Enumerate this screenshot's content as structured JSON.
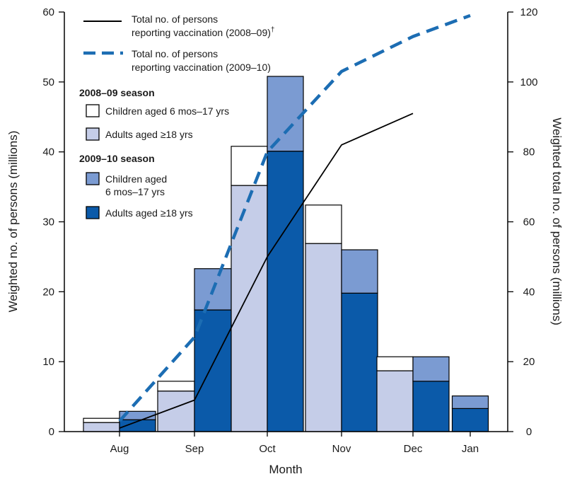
{
  "chart_data": {
    "type": "bar",
    "categories": [
      "Aug",
      "Sep",
      "Oct",
      "Nov",
      "Dec",
      "Jan"
    ],
    "xlabel": "Month",
    "ylabel": "Weighted no. of persons (millions)",
    "ylabel_right": "Weighted total no. of persons (millions)",
    "ylim": [
      0,
      60
    ],
    "ylim_right": [
      0,
      120
    ],
    "yticks": [
      0,
      10,
      20,
      30,
      40,
      50,
      60
    ],
    "yticks_right": [
      0,
      20,
      40,
      60,
      80,
      100,
      120
    ],
    "legend": {
      "season_2008_09": "2008–09 season",
      "season_2009_10": "2009–10 season",
      "line_2008_09_line1": "Total no. of persons",
      "line_2008_09_line2": "reporting vaccination (2008–09)",
      "line_2008_09_mark": "†",
      "line_2009_10_line1": "Total no. of persons",
      "line_2009_10_line2": "reporting vaccination (2009–10)",
      "children_2008": "Children aged 6 mos–17 yrs",
      "adults_2008": "Adults aged ≥18 yrs",
      "children_2009_line1": "Children aged",
      "children_2009_line2": "6 mos–17 yrs",
      "adults_2009": "Adults aged ≥18 yrs"
    },
    "series": [
      {
        "season": "2008–09",
        "group": "Adults aged ≥18 yrs",
        "values": [
          1.3,
          5.8,
          35.2,
          26.9,
          8.7,
          null
        ],
        "color": "#c5cde8"
      },
      {
        "season": "2008–09",
        "group": "Children aged 6 mos–17 yrs",
        "values": [
          0.6,
          1.4,
          5.6,
          5.5,
          2.0,
          null
        ],
        "color": "#ffffff"
      },
      {
        "season": "2009–10",
        "group": "Adults aged ≥18 yrs",
        "values": [
          1.7,
          17.4,
          40.1,
          19.8,
          7.2,
          3.3
        ],
        "color": "#0b5aa9"
      },
      {
        "season": "2009–10",
        "group": "Children aged 6 mos–17 yrs",
        "values": [
          1.2,
          5.9,
          10.7,
          6.2,
          3.5,
          1.8
        ],
        "color": "#7b9bd2"
      }
    ],
    "lines": [
      {
        "season": "2008–09",
        "style": "solid",
        "color": "#000000",
        "x": [
          "Aug",
          "Sep",
          "Oct",
          "Nov",
          "Dec"
        ],
        "y": [
          1,
          9,
          50,
          82,
          91
        ]
      },
      {
        "season": "2009–10",
        "style": "dashed",
        "color": "#1c6db3",
        "x": [
          "Aug",
          "Sep",
          "Oct",
          "Nov",
          "Dec",
          "Jan"
        ],
        "y": [
          3,
          27,
          80,
          103,
          113,
          119
        ]
      }
    ]
  }
}
